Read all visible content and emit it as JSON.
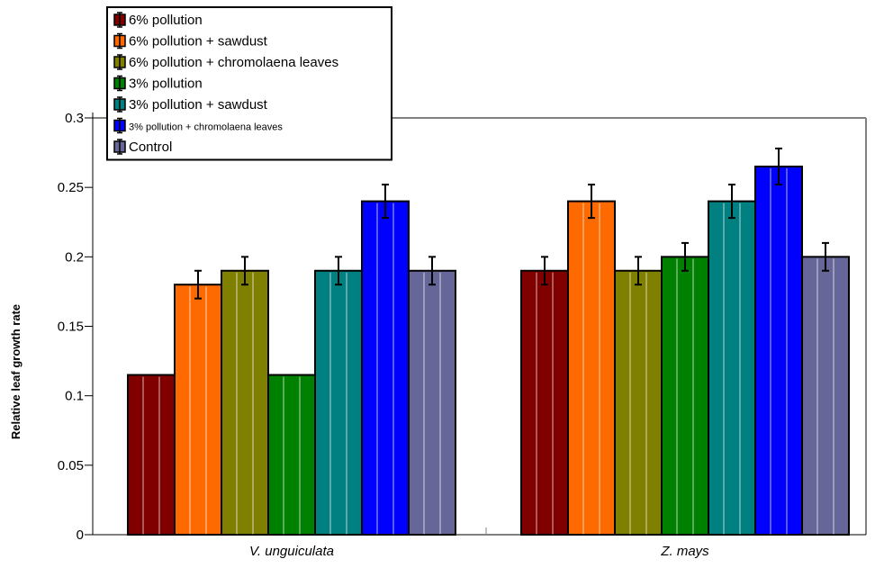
{
  "chart_data": {
    "type": "bar",
    "categories": [
      "V. unguiculata",
      "Z. mays"
    ],
    "ylabel": "Relative leaf growth rate",
    "xlabel": "",
    "ylim": [
      0,
      0.3
    ],
    "yticks": [
      0,
      0.05,
      0.1,
      0.15,
      0.2,
      0.25,
      0.3
    ],
    "ytick_labels": [
      "0",
      "0.05",
      "0.1",
      "0.15",
      "0.2",
      "0.25",
      "0.3"
    ],
    "legend_position": "top-left",
    "grid": false,
    "series": [
      {
        "name": "6% pollution",
        "color": "#800000",
        "values": [
          0.115,
          0.19
        ],
        "errors": [
          null,
          0.01
        ]
      },
      {
        "name": "6% pollution + sawdust",
        "color": "#ff6a00",
        "values": [
          0.18,
          0.24
        ],
        "errors": [
          0.01,
          0.012
        ]
      },
      {
        "name": "6% pollution + chromolaena leaves",
        "color": "#808000",
        "values": [
          0.19,
          0.19
        ],
        "errors": [
          0.01,
          0.01
        ]
      },
      {
        "name": "3% pollution",
        "color": "#008000",
        "values": [
          0.115,
          0.2
        ],
        "errors": [
          null,
          0.01
        ]
      },
      {
        "name": "3% pollution + sawdust",
        "color": "#008080",
        "values": [
          0.19,
          0.24
        ],
        "errors": [
          0.01,
          0.012
        ]
      },
      {
        "name": "3% pollution + chromolaena leaves",
        "color": "#0000ff",
        "values": [
          0.24,
          0.265
        ],
        "errors": [
          0.012,
          0.013
        ],
        "legend_small": true
      },
      {
        "name": "Control",
        "color": "#666699",
        "values": [
          0.19,
          0.2
        ],
        "errors": [
          0.01,
          0.01
        ]
      }
    ]
  }
}
